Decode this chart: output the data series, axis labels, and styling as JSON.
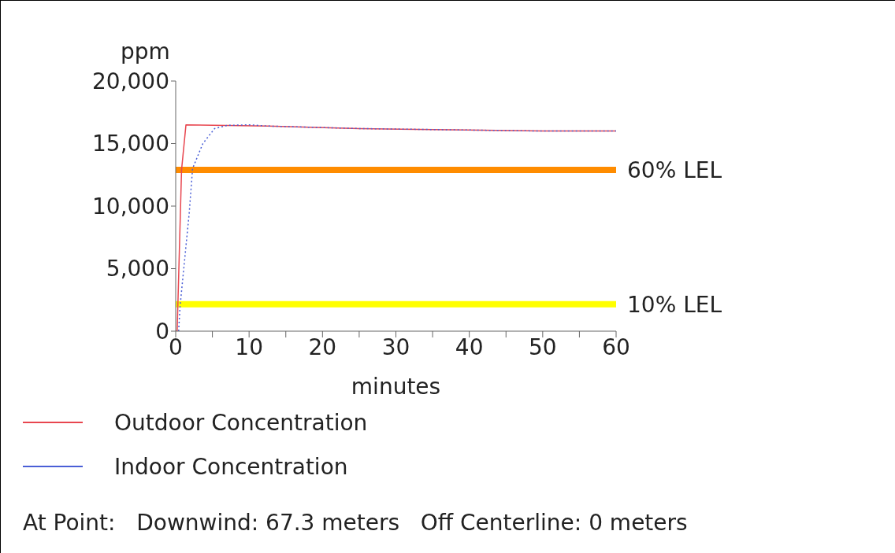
{
  "chart_data": {
    "type": "line",
    "ylabel": "ppm",
    "xlabel": "minutes",
    "xlim": [
      0,
      60
    ],
    "xticks": [
      0,
      {
        "value": 5,
        "label": null
      },
      10,
      {
        "value": 15,
        "label": null
      },
      20,
      {
        "value": 25,
        "label": null
      },
      30,
      {
        "value": 35,
        "label": null
      },
      40,
      {
        "value": 45,
        "label": null
      },
      50,
      {
        "value": 55,
        "label": null
      },
      60
    ],
    "ylim": [
      0,
      20000
    ],
    "yticks": [
      {
        "value": 0,
        "label": "0"
      },
      {
        "value": 5000,
        "label": "5,000"
      },
      {
        "value": 10000,
        "label": "10,000"
      },
      {
        "value": 15000,
        "label": "15,000"
      },
      {
        "value": 20000,
        "label": "20,000"
      }
    ],
    "series": [
      {
        "name": "Outdoor Concentration",
        "color": "#e8464f",
        "line_style": "solid",
        "x": [
          0,
          0.2,
          0.8,
          1.4,
          12.5,
          25,
          37.5,
          50,
          60
        ],
        "values": [
          0,
          0,
          12900,
          16500,
          16400,
          16200,
          16100,
          16000,
          16000
        ]
      },
      {
        "name": "Indoor Concentration",
        "color": "#4a5fd6",
        "line_style": "dotted",
        "x": [
          0.4,
          0.6,
          1.2,
          1.85,
          2.3,
          3.7,
          5.3,
          7,
          10,
          12.5,
          25,
          37.5,
          50,
          60
        ],
        "values": [
          0,
          2000,
          5600,
          9500,
          13000,
          15000,
          16200,
          16450,
          16500,
          16400,
          16200,
          16100,
          16000,
          16000
        ]
      }
    ],
    "ref_lines": [
      {
        "axis": "y",
        "value": 12900,
        "label": "60% LEL",
        "color": "#ff8c00"
      },
      {
        "axis": "y",
        "value": 2150,
        "label": "10% LEL",
        "color": "#ffff00"
      }
    ],
    "legend": "bottom",
    "grid": false,
    "annotations": [
      "At Point:   Downwind: 67.3 meters   Off Centerline: 0 meters"
    ]
  }
}
